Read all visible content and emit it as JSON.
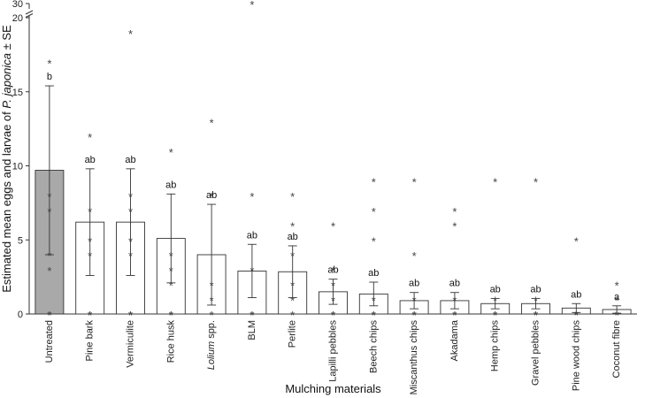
{
  "chart_data": {
    "type": "bar",
    "title": "",
    "xlabel": "Mulching materials",
    "ylabel_parts": [
      "Estimated mean eggs and larvae of ",
      "P. japonica",
      " ± SE"
    ],
    "ylim": [
      0,
      20
    ],
    "axis_break": {
      "upper_tick": 30
    },
    "yticks": [
      0,
      5,
      10,
      15,
      20
    ],
    "ytick_labels": [
      "0",
      "5",
      "10",
      "15",
      "20"
    ],
    "upper_tick_label": "30",
    "categories": [
      "Untreated",
      "Pine bark",
      "Vermiculite",
      "Rice husk",
      "Lolium spp.",
      "BLM",
      "Perlite",
      "Lapilli pebbles",
      "Beech chips",
      "Miscanthus chips",
      "Akadama",
      "Hemp chips",
      "Gravel pebbles",
      "Pine wood chips",
      "Coconut fibre"
    ],
    "italic_categories": [
      "Lolium"
    ],
    "values": [
      9.7,
      6.2,
      6.2,
      5.1,
      4.0,
      2.9,
      2.85,
      1.5,
      1.35,
      0.9,
      0.9,
      0.7,
      0.7,
      0.4,
      0.3
    ],
    "se": [
      5.7,
      3.6,
      3.6,
      3.0,
      3.4,
      1.8,
      1.75,
      0.85,
      0.8,
      0.55,
      0.55,
      0.35,
      0.35,
      0.3,
      0.25
    ],
    "letters": [
      "b",
      "ab",
      "ab",
      "ab",
      "ab",
      "ab",
      "ab",
      "ab",
      "ab",
      "ab",
      "ab",
      "ab",
      "ab",
      "ab",
      "a"
    ],
    "highlight_index": 0,
    "colors": {
      "highlight": "#a9a9a9",
      "bar": "#ffffff",
      "stroke": "#333333",
      "point": "#444444"
    },
    "points": [
      [
        0,
        0,
        3,
        4,
        7,
        8,
        17
      ],
      [
        0,
        0,
        4,
        5,
        7,
        12
      ],
      [
        0,
        0,
        4,
        5,
        7,
        8,
        19
      ],
      [
        0,
        0,
        2,
        3,
        4,
        11
      ],
      [
        0,
        1,
        2,
        8,
        13
      ],
      [
        0,
        0,
        3,
        8
      ],
      [
        0,
        1,
        2,
        4,
        6,
        8
      ],
      [
        0,
        0,
        1,
        2,
        3,
        6
      ],
      [
        0,
        0,
        1,
        5,
        7,
        9
      ],
      [
        0,
        0,
        1,
        4,
        9
      ],
      [
        0,
        0,
        1,
        6,
        7
      ],
      [
        0,
        0,
        1,
        9
      ],
      [
        0,
        0,
        1,
        9
      ],
      [
        0,
        0,
        5
      ],
      [
        0,
        0,
        1,
        2
      ]
    ],
    "outliers_above_break": [
      {
        "index": 5,
        "value": 30
      }
    ]
  }
}
